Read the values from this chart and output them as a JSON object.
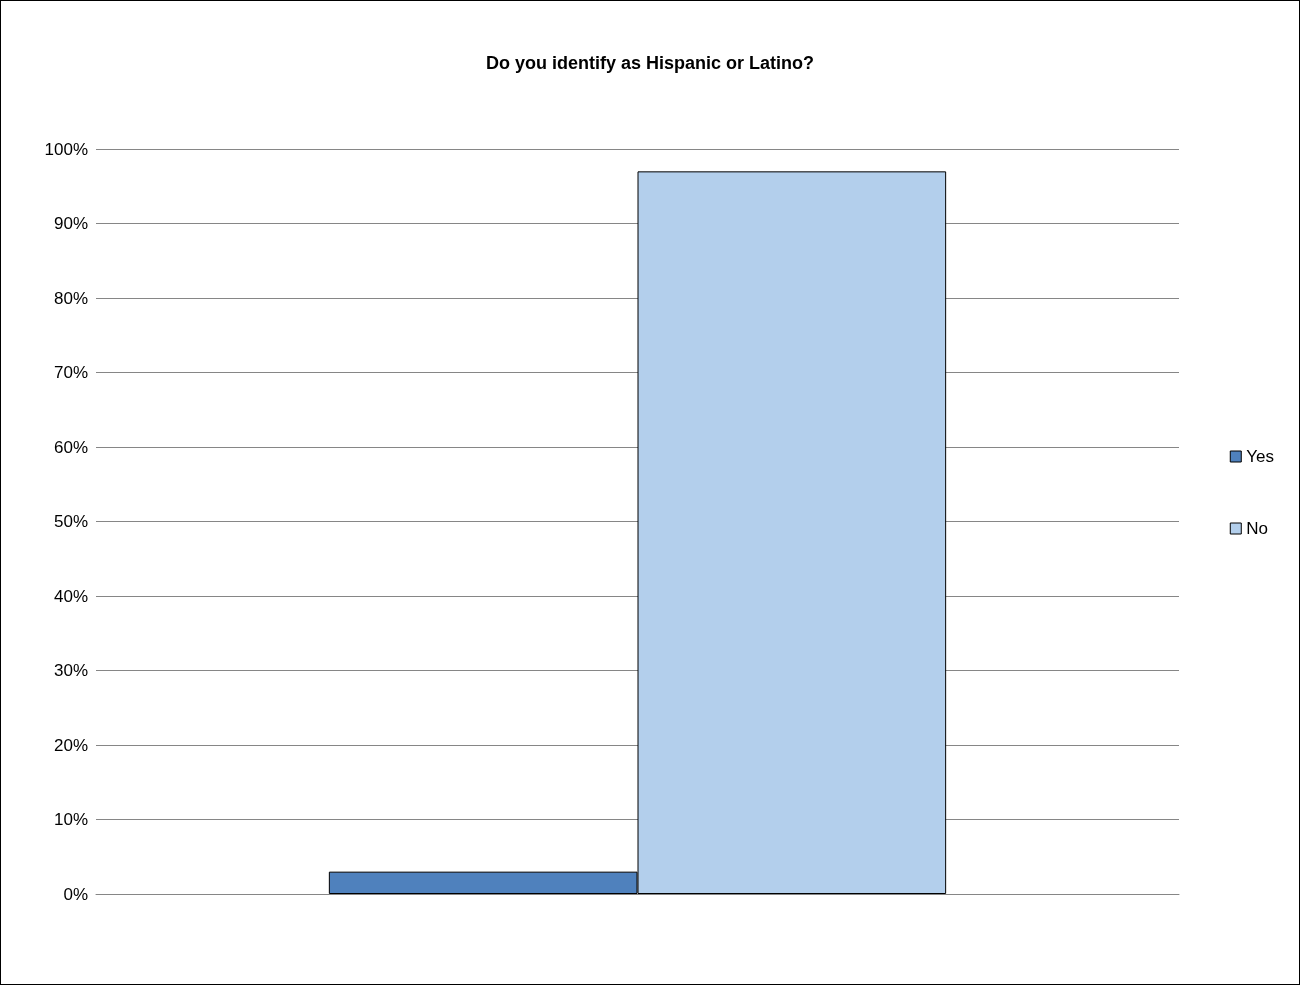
{
  "chart_data": {
    "type": "bar",
    "title": "Do you identify as Hispanic or Latino?",
    "categories": [
      null
    ],
    "series": [
      {
        "name": "Yes",
        "color": "#4f81bd",
        "values": [
          3
        ]
      },
      {
        "name": "No",
        "color": "#b3cfec",
        "values": [
          97
        ]
      }
    ],
    "ylim": [
      0,
      100
    ],
    "yticks": [
      {
        "value": 0,
        "label": "0%"
      },
      {
        "value": 10,
        "label": "10%"
      },
      {
        "value": 20,
        "label": "20%"
      },
      {
        "value": 30,
        "label": "30%"
      },
      {
        "value": 40,
        "label": "40%"
      },
      {
        "value": 50,
        "label": "50%"
      },
      {
        "value": 60,
        "label": "60%"
      },
      {
        "value": 70,
        "label": "70%"
      },
      {
        "value": 80,
        "label": "80%"
      },
      {
        "value": 90,
        "label": "90%"
      },
      {
        "value": 100,
        "label": "100%"
      }
    ],
    "grid": "y",
    "legend": "right",
    "tick_labels": "y"
  }
}
